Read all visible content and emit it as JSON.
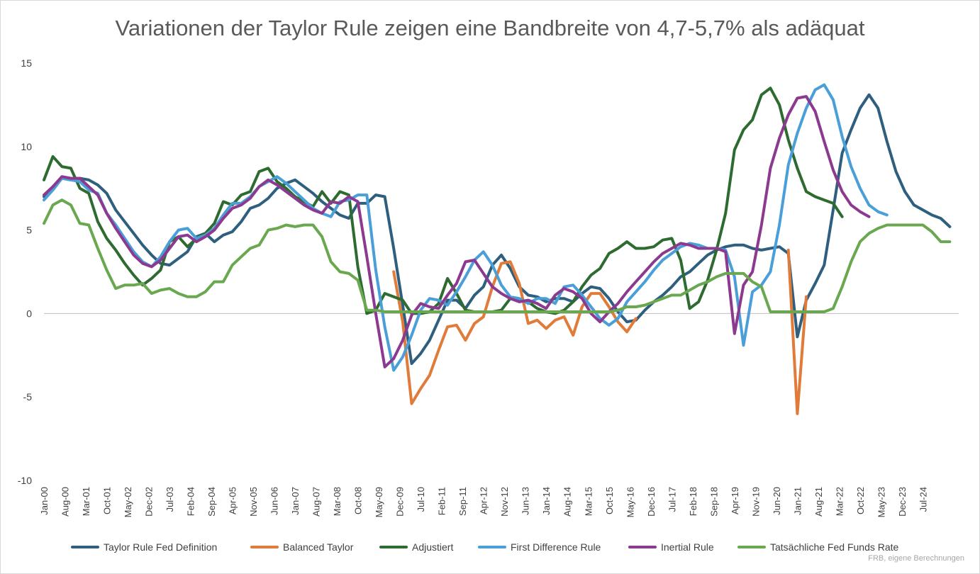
{
  "chart_data": {
    "type": "line",
    "title": "Variationen der Taylor Rule zeigen eine Bandbreite von 4,7-5,7% als adäquat",
    "source": "FRB, eigene Berechnungen",
    "xlabel": "",
    "ylabel": "",
    "ylim": [
      -10,
      15
    ],
    "yticks": [
      15,
      10,
      5,
      0,
      -5,
      -10
    ],
    "x_start": "2000-01",
    "x_step_months": 3,
    "xticks": [
      "Jan-00",
      "Aug-00",
      "Mar-01",
      "Oct-01",
      "May-02",
      "Dec-02",
      "Jul-03",
      "Feb-04",
      "Sep-04",
      "Apr-05",
      "Nov-05",
      "Jun-06",
      "Jan-07",
      "Aug-07",
      "Mar-08",
      "Oct-08",
      "May-09",
      "Dec-09",
      "Jul-10",
      "Feb-11",
      "Sep-11",
      "Apr-12",
      "Nov-12",
      "Jun-13",
      "Jan-14",
      "Aug-14",
      "Mar-15",
      "Oct-15",
      "May-16",
      "Dec-16",
      "Jul-17",
      "Feb-18",
      "Sep-18",
      "Apr-19",
      "Nov-19",
      "Jun-20",
      "Jan-21",
      "Aug-21",
      "Mar-22",
      "Oct-22",
      "May-23",
      "Dec-23",
      "Jul-24"
    ],
    "grid": false,
    "legend": "bottom",
    "series": [
      {
        "name": "Taylor Rule Fed Definition",
        "color": "#2f5f7e",
        "values": [
          7.0,
          7.5,
          8.1,
          8.0,
          8.1,
          8.0,
          7.7,
          7.2,
          6.2,
          5.5,
          4.8,
          4.1,
          3.5,
          3.0,
          2.9,
          3.3,
          3.7,
          4.6,
          4.8,
          4.3,
          4.7,
          4.9,
          5.5,
          6.3,
          6.5,
          6.9,
          7.5,
          7.8,
          8.0,
          7.6,
          7.2,
          6.7,
          6.3,
          5.9,
          5.7,
          6.6,
          6.6,
          7.1,
          7.0,
          3.9,
          0.5,
          -3.0,
          -2.4,
          -1.6,
          -0.4,
          0.8,
          0.8,
          0.3,
          1.1,
          1.6,
          2.9,
          3.5,
          2.7,
          1.6,
          1.1,
          1.0,
          0.7,
          0.9,
          0.9,
          0.7,
          1.2,
          1.6,
          1.5,
          0.9,
          0.1,
          -0.5,
          -0.4,
          0.2,
          0.7,
          1.1,
          1.6,
          2.2,
          2.5,
          3.0,
          3.5,
          3.8,
          4.0,
          4.1,
          4.1,
          3.9,
          3.8,
          3.9,
          4.0,
          3.6,
          -1.4,
          0.8,
          1.8,
          2.9,
          6.2,
          9.6,
          11.0,
          12.3,
          13.1,
          12.3,
          10.3,
          8.5,
          7.3,
          6.5,
          6.2,
          5.9,
          5.7,
          5.2
        ]
      },
      {
        "name": "Balanced Taylor",
        "color": "#e07b39",
        "values": [
          null,
          null,
          null,
          null,
          null,
          null,
          null,
          null,
          null,
          null,
          null,
          null,
          null,
          null,
          null,
          null,
          null,
          null,
          null,
          null,
          null,
          null,
          null,
          null,
          null,
          null,
          null,
          null,
          null,
          null,
          null,
          null,
          null,
          null,
          null,
          null,
          null,
          null,
          null,
          2.5,
          -0.5,
          -5.4,
          -4.5,
          -3.7,
          -2.2,
          -0.8,
          -0.7,
          -1.6,
          -0.6,
          -0.2,
          1.6,
          3.0,
          3.1,
          1.8,
          -0.6,
          -0.4,
          -0.9,
          -0.4,
          -0.2,
          -1.3,
          0.4,
          1.2,
          1.2,
          0.4,
          -0.5,
          -1.1,
          -0.3,
          null,
          null,
          null,
          null,
          null,
          null,
          null,
          null,
          null,
          null,
          null,
          null,
          null,
          null,
          null,
          null,
          3.8,
          -6.0,
          1.0
        ]
      },
      {
        "name": "Adjustiert",
        "color": "#2e6b30",
        "values": [
          8.0,
          9.4,
          8.8,
          8.7,
          7.5,
          7.2,
          5.5,
          4.5,
          3.8,
          3.0,
          2.3,
          1.7,
          2.1,
          2.6,
          4.3,
          4.6,
          4.0,
          4.5,
          4.8,
          5.4,
          6.7,
          6.5,
          7.1,
          7.3,
          8.5,
          8.7,
          7.9,
          7.5,
          7.0,
          6.7,
          6.4,
          7.3,
          6.6,
          7.3,
          7.1,
          2.8,
          0.0,
          0.2,
          1.2,
          1.0,
          0.8,
          0.0,
          0.0,
          0.1,
          0.6,
          2.1,
          1.2,
          0.2,
          0.1,
          0.1,
          0.1,
          0.2,
          0.9,
          0.8,
          0.7,
          0.3,
          0.1,
          0.0,
          0.2,
          0.7,
          1.6,
          2.3,
          2.7,
          3.6,
          3.9,
          4.3,
          3.9,
          3.9,
          4.0,
          4.4,
          4.5,
          3.2,
          0.3,
          0.7,
          2.0,
          3.8,
          6.0,
          9.8,
          11.0,
          11.6,
          13.1,
          13.5,
          12.5,
          10.4,
          8.7,
          7.3,
          7.0,
          6.8,
          6.6,
          5.8
        ]
      },
      {
        "name": "First Difference Rule",
        "color": "#4a9fd8",
        "values": [
          6.8,
          7.4,
          8.1,
          8.0,
          7.9,
          7.4,
          7.2,
          6.0,
          5.3,
          4.5,
          3.7,
          3.1,
          2.8,
          3.4,
          4.3,
          5.0,
          5.1,
          4.5,
          4.7,
          5.1,
          5.9,
          6.6,
          6.6,
          7.0,
          7.6,
          7.9,
          8.2,
          7.8,
          7.3,
          6.8,
          6.3,
          6.0,
          5.8,
          6.7,
          6.8,
          7.1,
          7.1,
          2.6,
          -0.8,
          -3.4,
          -2.6,
          -1.3,
          0.2,
          0.9,
          0.8,
          0.5,
          1.3,
          2.2,
          3.2,
          3.7,
          2.9,
          1.7,
          1.0,
          0.9,
          0.6,
          0.9,
          0.9,
          0.6,
          1.6,
          1.7,
          1.1,
          0.4,
          -0.3,
          -0.7,
          -0.3,
          0.7,
          1.3,
          1.9,
          2.6,
          3.2,
          3.6,
          4.0,
          4.2,
          4.1,
          3.9,
          3.9,
          3.8,
          2.2,
          -1.9,
          1.3,
          1.7,
          2.5,
          5.3,
          8.9,
          10.8,
          12.3,
          13.4,
          13.7,
          12.8,
          10.6,
          8.8,
          7.5,
          6.5,
          6.1,
          5.9
        ]
      },
      {
        "name": "Inertial Rule",
        "color": "#8b3a8f",
        "values": [
          7.1,
          7.6,
          8.2,
          8.1,
          8.1,
          7.6,
          7.1,
          6.0,
          5.1,
          4.3,
          3.5,
          3.0,
          2.8,
          3.2,
          3.9,
          4.6,
          4.7,
          4.3,
          4.6,
          5.0,
          5.7,
          6.3,
          6.5,
          6.9,
          7.6,
          8.0,
          7.7,
          7.3,
          6.9,
          6.5,
          6.2,
          6.0,
          6.7,
          6.6,
          7.0,
          6.7,
          3.4,
          0.0,
          -3.2,
          -2.7,
          -1.6,
          -0.1,
          0.6,
          0.4,
          0.3,
          1.1,
          1.8,
          3.1,
          3.2,
          2.4,
          1.6,
          1.2,
          0.9,
          0.7,
          0.8,
          0.6,
          0.3,
          1.1,
          1.5,
          1.3,
          0.9,
          0.0,
          -0.5,
          0.1,
          0.6,
          1.3,
          1.9,
          2.5,
          3.1,
          3.6,
          3.9,
          4.2,
          4.1,
          3.9,
          3.9,
          3.9,
          3.7,
          -1.2,
          1.7,
          2.5,
          5.3,
          8.7,
          10.5,
          11.9,
          12.9,
          13.0,
          12.1,
          10.3,
          8.6,
          7.3,
          6.5,
          6.1,
          5.8
        ]
      },
      {
        "name": "Tatsächliche Fed Funds Rate",
        "color": "#6aa84f",
        "values": [
          5.4,
          6.5,
          6.8,
          6.5,
          5.4,
          5.3,
          3.9,
          2.6,
          1.5,
          1.7,
          1.7,
          1.8,
          1.2,
          1.4,
          1.5,
          1.2,
          1.0,
          1.0,
          1.3,
          1.9,
          1.9,
          2.9,
          3.4,
          3.9,
          4.1,
          5.0,
          5.1,
          5.3,
          5.2,
          5.3,
          5.3,
          4.6,
          3.1,
          2.5,
          2.4,
          2.0,
          0.2,
          0.2,
          0.1,
          0.1,
          0.1,
          0.1,
          0.1,
          0.1,
          0.1,
          0.1,
          0.1,
          0.1,
          0.1,
          0.1,
          0.1,
          0.1,
          0.1,
          0.1,
          0.1,
          0.1,
          0.1,
          0.1,
          0.1,
          0.1,
          0.1,
          0.1,
          0.1,
          0.1,
          0.2,
          0.4,
          0.4,
          0.5,
          0.7,
          0.9,
          1.1,
          1.1,
          1.4,
          1.7,
          1.9,
          2.2,
          2.4,
          2.4,
          2.4,
          1.9,
          1.6,
          0.1,
          0.1,
          0.1,
          0.1,
          0.1,
          0.1,
          0.1,
          0.3,
          1.6,
          3.1,
          4.3,
          4.8,
          5.1,
          5.3,
          5.3,
          5.3,
          5.3,
          5.3,
          4.9,
          4.3,
          4.3
        ]
      }
    ]
  }
}
